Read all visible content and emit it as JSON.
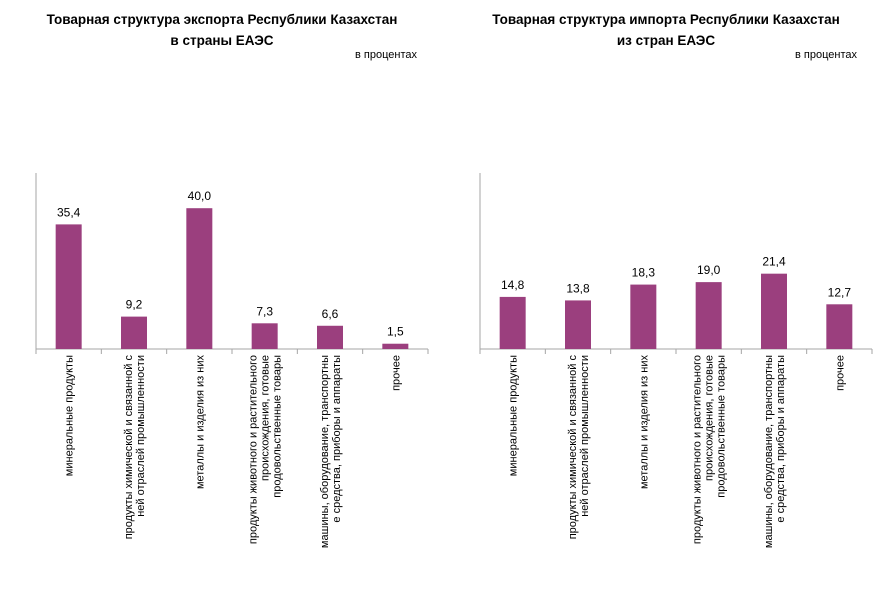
{
  "units_label": "в процентах",
  "colors": {
    "bar": "#9b3f7e",
    "axis": "#a6a6a6"
  },
  "chart_data": [
    {
      "type": "bar",
      "title": [
        "Товарная  структура  экспорта  Республики  Казахстан",
        "в страны ЕАЭС"
      ],
      "ylim": [
        0,
        50
      ],
      "grid": false,
      "legend": "none",
      "categories": [
        [
          "минеральные продукты"
        ],
        [
          "продукты химической и связанной с",
          "ней отраслей промышленности"
        ],
        [
          "металлы и изделия из них"
        ],
        [
          "продукты животного и растительного",
          "происхождения, готовые",
          "продовольственные товары"
        ],
        [
          "машины, оборудование, транспортны",
          "е средства, приборы и аппараты"
        ],
        [
          "прочее"
        ]
      ],
      "values": [
        35.4,
        9.2,
        40.0,
        7.3,
        6.6,
        1.5
      ],
      "value_labels": [
        "35,4",
        "9,2",
        "40,0",
        "7,3",
        "6,6",
        "1,5"
      ]
    },
    {
      "type": "bar",
      "title": [
        "Товарная  структура  импорта  Республики  Казахстан",
        "из стран ЕАЭС"
      ],
      "ylim": [
        0,
        50
      ],
      "grid": false,
      "legend": "none",
      "categories": [
        [
          "минеральные продукты"
        ],
        [
          "продукты химической и связанной с",
          "ней отраслей промышленности"
        ],
        [
          "металлы и изделия из них"
        ],
        [
          "продукты животного и растительного",
          "происхождения, готовые",
          "продовольственные товары"
        ],
        [
          "машины, оборудование, транспортны",
          "е средства, приборы и аппараты"
        ],
        [
          "прочее"
        ]
      ],
      "values": [
        14.8,
        13.8,
        18.3,
        19.0,
        21.4,
        12.7
      ],
      "value_labels": [
        "14,8",
        "13,8",
        "18,3",
        "19,0",
        "21,4",
        "12,7"
      ]
    }
  ]
}
